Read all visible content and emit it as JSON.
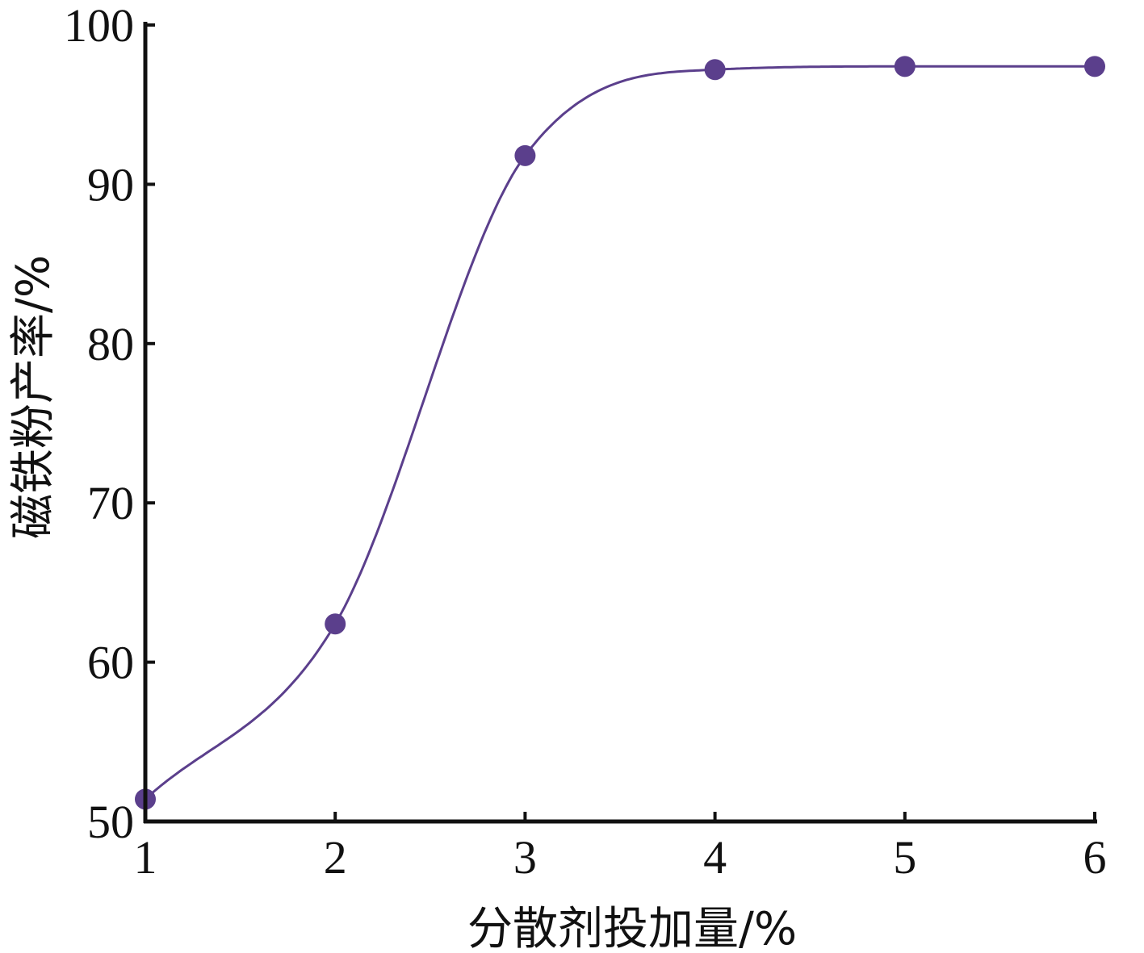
{
  "chart_data": {
    "type": "line",
    "title": "",
    "xlabel": "分散剂投加量/%",
    "ylabel": "磁铁粉产率/%",
    "xlim": [
      1,
      6
    ],
    "ylim": [
      50,
      100
    ],
    "x_ticks": [
      "1",
      "2",
      "3",
      "4",
      "5",
      "6"
    ],
    "y_ticks": [
      "50",
      "60",
      "70",
      "80",
      "90",
      "100"
    ],
    "grid": false,
    "legend": "none",
    "series": [
      {
        "x": [
          1,
          2,
          3,
          4,
          5,
          6
        ],
        "y": [
          51.4,
          62.4,
          91.8,
          97.2,
          97.4,
          97.4
        ],
        "color": "#5b3f8c",
        "marker": "circle",
        "smooth": true
      }
    ]
  }
}
